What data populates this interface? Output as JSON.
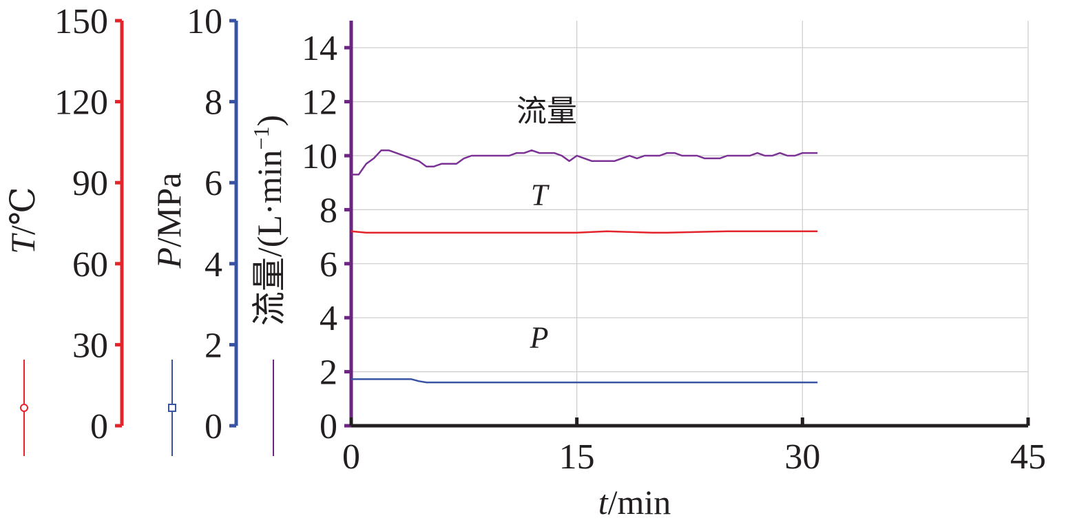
{
  "chart_data": {
    "type": "line",
    "x_axis": {
      "label_var": "t",
      "label_unit": "/min",
      "range": [
        0,
        45
      ],
      "ticks": [
        0,
        15,
        30,
        45
      ],
      "tick_labels": [
        "0",
        "15",
        "30",
        "45"
      ]
    },
    "y_axes": [
      {
        "id": "temperature",
        "label_var": "T",
        "label_unit": "/℃",
        "range": [
          0,
          150
        ],
        "ticks": [
          0,
          30,
          60,
          90,
          120,
          150
        ],
        "tick_labels": [
          "0",
          "30",
          "60",
          "90",
          "120",
          "150"
        ],
        "color": "#e3242b"
      },
      {
        "id": "pressure",
        "label_var": "P",
        "label_unit": "/MPa",
        "range": [
          0,
          10
        ],
        "ticks": [
          0,
          2,
          4,
          6,
          8,
          10
        ],
        "tick_labels": [
          "0",
          "2",
          "4",
          "6",
          "8",
          "10"
        ],
        "color": "#3953a4"
      },
      {
        "id": "flow",
        "label_text": "流量/(L·min",
        "label_sup": "−1",
        "label_close": ")",
        "range": [
          0,
          15
        ],
        "ticks": [
          0,
          2,
          4,
          6,
          8,
          10,
          12,
          14
        ],
        "tick_labels": [
          "0",
          "2",
          "4",
          "6",
          "8",
          "10",
          "12",
          "14"
        ],
        "color": "#6a2681"
      }
    ],
    "grid": true,
    "series": [
      {
        "name": "流量",
        "label_italic": false,
        "axis": "flow",
        "color": "#7b3294",
        "x": [
          0,
          0.5,
          1,
          1.5,
          2,
          2.5,
          3,
          3.5,
          4,
          4.5,
          5,
          5.5,
          6,
          6.5,
          7,
          7.5,
          8,
          8.5,
          9,
          9.5,
          10,
          10.5,
          11,
          11.5,
          12,
          12.5,
          13,
          13.5,
          14,
          14.5,
          15,
          15.5,
          16,
          16.5,
          17,
          17.5,
          18,
          18.5,
          19,
          19.5,
          20,
          20.5,
          21,
          21.5,
          22,
          22.5,
          23,
          23.5,
          24,
          24.5,
          25,
          25.5,
          26,
          26.5,
          27,
          27.5,
          28,
          28.5,
          29,
          29.5,
          30,
          30.5,
          31
        ],
        "y": [
          9.3,
          9.3,
          9.7,
          9.9,
          10.2,
          10.2,
          10.1,
          10.0,
          9.9,
          9.8,
          9.6,
          9.6,
          9.7,
          9.7,
          9.7,
          9.9,
          10.0,
          10.0,
          10.0,
          10.0,
          10.0,
          10.0,
          10.1,
          10.1,
          10.2,
          10.1,
          10.1,
          10.1,
          10.0,
          9.8,
          10.0,
          9.9,
          9.8,
          9.8,
          9.8,
          9.8,
          9.9,
          10.0,
          9.9,
          10.0,
          10.0,
          10.0,
          10.1,
          10.1,
          10.0,
          10.0,
          10.0,
          9.9,
          9.9,
          9.9,
          10.0,
          10.0,
          10.0,
          10.0,
          10.1,
          10.0,
          10.0,
          10.1,
          10.0,
          10.0,
          10.1,
          10.1,
          10.1
        ]
      },
      {
        "name": "T",
        "label_italic": true,
        "axis": "temperature",
        "color": "#e3242b",
        "x": [
          0,
          1,
          5,
          10,
          15,
          17,
          20,
          21,
          25,
          31
        ],
        "y": [
          72,
          71.5,
          71.5,
          71.5,
          71.5,
          72,
          71.5,
          71.5,
          72,
          72
        ]
      },
      {
        "name": "P",
        "label_italic": true,
        "axis": "pressure",
        "color": "#3953a4",
        "x": [
          0,
          1,
          3,
          4,
          4.5,
          5,
          10,
          15,
          20,
          25,
          31
        ],
        "y": [
          1.15,
          1.15,
          1.15,
          1.15,
          1.1,
          1.07,
          1.07,
          1.07,
          1.07,
          1.07,
          1.07
        ]
      }
    ]
  },
  "legend_colors": {
    "temperature": "#e3242b",
    "pressure": "#3953a4",
    "flow": "#6a2681",
    "axis_dark": "#231f20",
    "grid": "#cccccc"
  }
}
